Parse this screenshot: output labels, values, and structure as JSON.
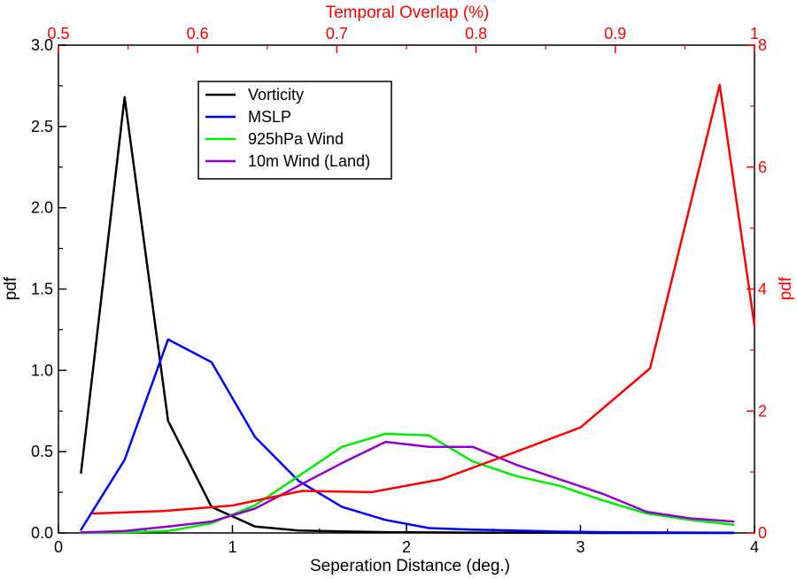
{
  "chart_data": {
    "type": "line",
    "xlabel": "Seperation Distance (deg.)",
    "ylabel": "pdf",
    "xlim": [
      0,
      4
    ],
    "ylim": [
      0,
      3.0
    ],
    "x_ticks": [
      "0",
      "1",
      "2",
      "3",
      "4"
    ],
    "y_ticks": [
      "0.0",
      "0.5",
      "1.0",
      "1.5",
      "2.0",
      "2.5",
      "3.0"
    ],
    "x2label": "Temporal Overlap (%)",
    "y2label": "pdf",
    "x2lim": [
      0.5,
      1.0
    ],
    "y2lim": [
      0,
      8
    ],
    "x2_ticks": [
      "0.5",
      "0.6",
      "0.7",
      "0.8",
      "0.9",
      "1"
    ],
    "y2_ticks": [
      "0",
      "2",
      "4",
      "6",
      "8"
    ],
    "grid": false,
    "legend_position": "top-left",
    "series": [
      {
        "name": "Vorticity",
        "color": "#000000",
        "axis": "primary",
        "x": [
          0.13,
          0.38,
          0.63,
          0.88,
          1.13,
          1.38,
          1.63,
          1.88,
          2.13,
          2.38,
          2.63,
          2.88,
          3.13,
          3.38,
          3.63,
          3.88
        ],
        "y": [
          0.37,
          2.68,
          0.69,
          0.16,
          0.04,
          0.015,
          0.01,
          0.005,
          0.003,
          0.002,
          0.001,
          0.001,
          0.0,
          0.0,
          0.0,
          0.0
        ]
      },
      {
        "name": "MSLP",
        "color": "#0000ff",
        "axis": "primary",
        "x": [
          0.13,
          0.38,
          0.63,
          0.88,
          1.13,
          1.38,
          1.63,
          1.88,
          2.13,
          2.38,
          2.63,
          2.88,
          3.13,
          3.38,
          3.63,
          3.88
        ],
        "y": [
          0.02,
          0.45,
          1.19,
          1.05,
          0.59,
          0.32,
          0.16,
          0.08,
          0.03,
          0.02,
          0.015,
          0.008,
          0.005,
          0.003,
          0.002,
          0.001
        ]
      },
      {
        "name": "925hPa Wind",
        "color": "#00ee00",
        "axis": "primary",
        "x": [
          0.13,
          0.38,
          0.63,
          0.88,
          1.13,
          1.38,
          1.63,
          1.88,
          2.13,
          2.38,
          2.63,
          2.88,
          3.13,
          3.38,
          3.63,
          3.88
        ],
        "y": [
          0.0,
          0.003,
          0.012,
          0.06,
          0.17,
          0.35,
          0.53,
          0.61,
          0.6,
          0.44,
          0.35,
          0.29,
          0.2,
          0.12,
          0.08,
          0.05
        ]
      },
      {
        "name": "10m Wind (Land)",
        "color": "#9400d3",
        "axis": "primary",
        "x": [
          0.13,
          0.38,
          0.63,
          0.88,
          1.13,
          1.38,
          1.63,
          1.88,
          2.13,
          2.38,
          2.63,
          2.88,
          3.13,
          3.38,
          3.63,
          3.88
        ],
        "y": [
          0.003,
          0.012,
          0.04,
          0.07,
          0.15,
          0.29,
          0.43,
          0.56,
          0.53,
          0.53,
          0.42,
          0.33,
          0.24,
          0.13,
          0.09,
          0.07
        ]
      },
      {
        "name": "",
        "color": "#ff0000",
        "axis": "secondary",
        "x": [
          0.525,
          0.575,
          0.625,
          0.675,
          0.725,
          0.775,
          0.825,
          0.875,
          0.925,
          0.975,
          1.0
        ],
        "y": [
          0.32,
          0.36,
          0.45,
          0.69,
          0.67,
          0.88,
          1.3,
          1.73,
          2.7,
          7.35,
          3.4
        ]
      }
    ]
  }
}
